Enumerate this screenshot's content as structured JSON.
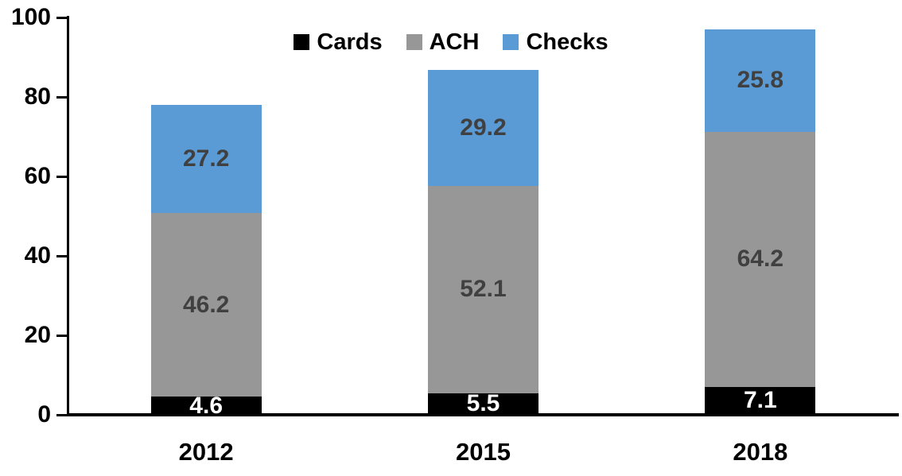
{
  "chart_data": {
    "type": "bar",
    "stacked": true,
    "title": "",
    "xlabel": "",
    "ylabel": "",
    "categories": [
      "2012",
      "2015",
      "2018"
    ],
    "series": [
      {
        "name": "Cards",
        "color": "#000000",
        "label_color": "#ffffff",
        "values": [
          4.6,
          5.5,
          7.1
        ]
      },
      {
        "name": "ACH",
        "color": "#979797",
        "label_color": "#404040",
        "values": [
          46.2,
          52.1,
          64.2
        ]
      },
      {
        "name": "Checks",
        "color": "#5B9BD5",
        "label_color": "#404040",
        "values": [
          27.2,
          29.2,
          25.8
        ]
      }
    ],
    "totals": [
      78.0,
      86.8,
      97.1
    ],
    "ylim": [
      0,
      100
    ],
    "yticks": [
      0,
      20,
      40,
      60,
      80,
      100
    ],
    "grid": false,
    "data_labels": true,
    "legend_position": "top-center",
    "axis_color": "#000000",
    "text_color": "#000000",
    "background_color": "#ffffff"
  }
}
